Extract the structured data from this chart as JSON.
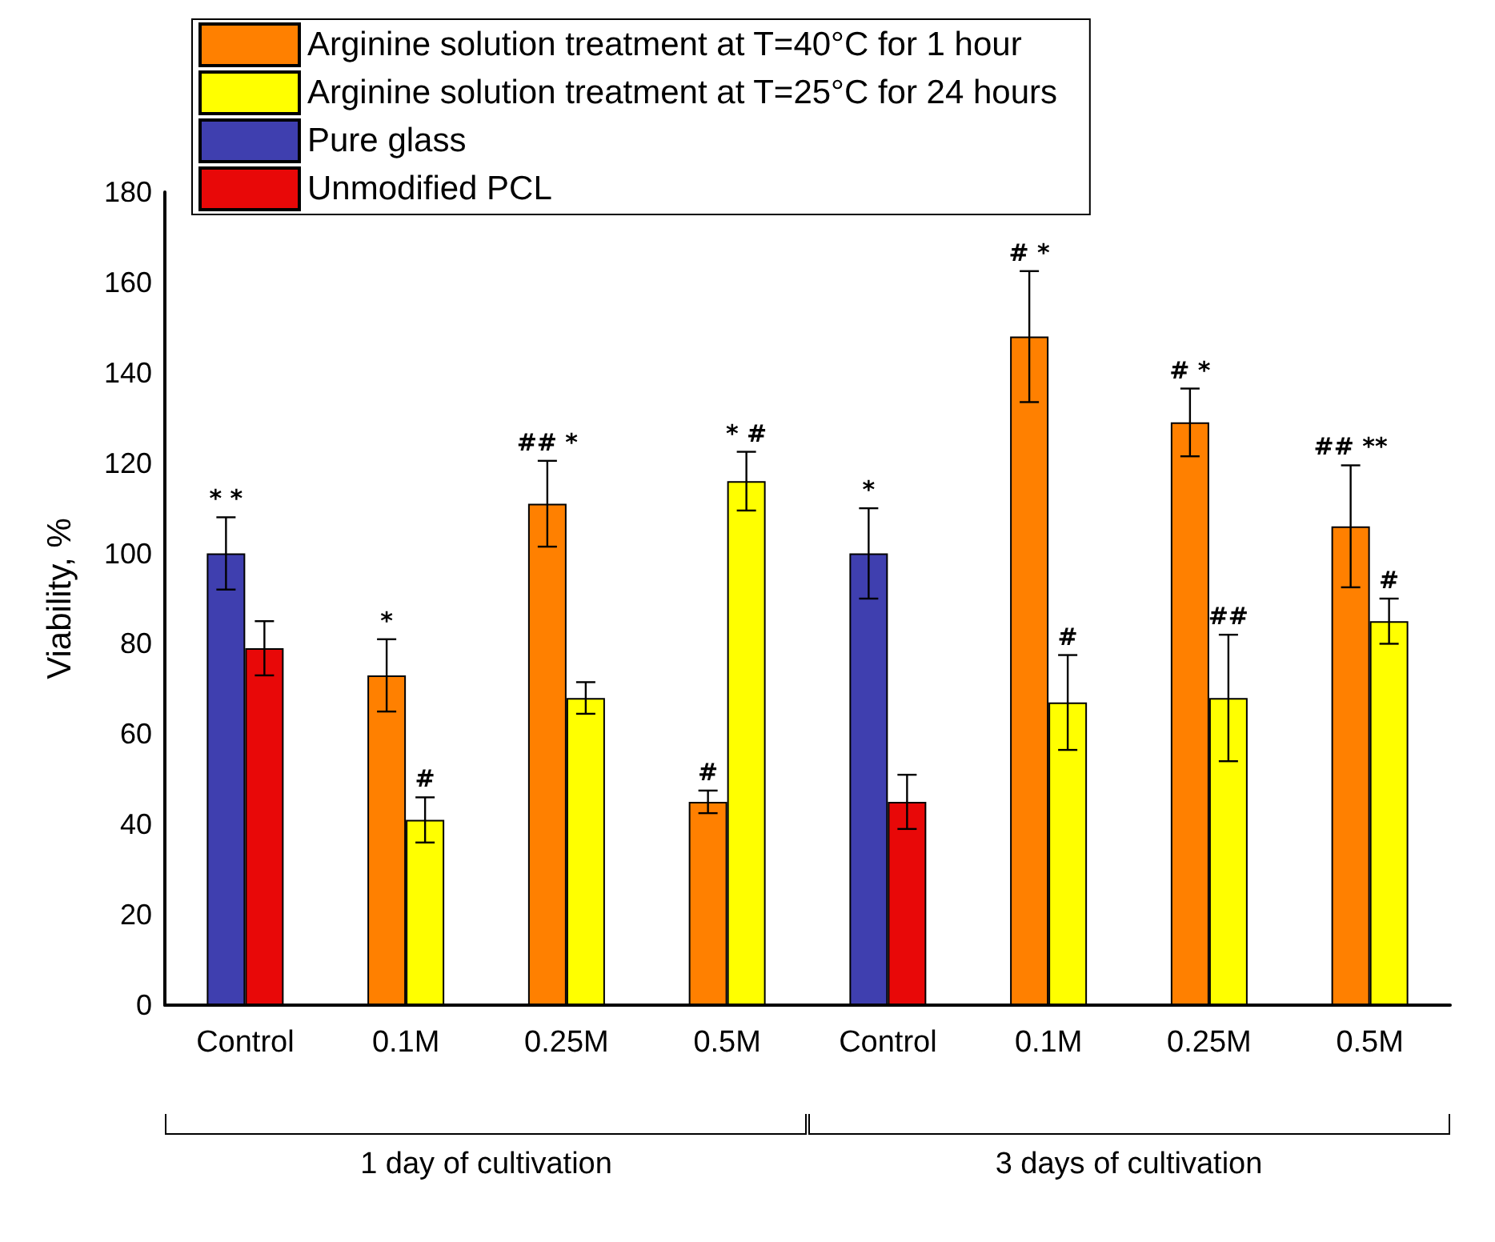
{
  "chart_data": {
    "type": "bar",
    "ylabel": "Viability, %",
    "categories": [
      "Control",
      "0.1M",
      "0.25M",
      "0.5M",
      "Control",
      "0.1M",
      "0.25M",
      "0.5M"
    ],
    "series": [
      {
        "name": "Arginine solution treatment at T=40°C for 1 hour",
        "color": "#ff8000",
        "values": [
          null,
          73,
          111,
          45,
          null,
          148,
          129,
          106
        ],
        "errors": [
          null,
          8,
          9.5,
          2.5,
          null,
          14.5,
          7.5,
          13.5
        ],
        "value_labels": [
          null,
          "*",
          "## *",
          "#",
          null,
          "# *",
          "# *",
          "## **"
        ]
      },
      {
        "name": "Arginine solution treatment at T=25°C for 24 hours",
        "color": "#ffff00",
        "values": [
          null,
          41,
          68,
          116,
          null,
          67,
          68,
          85
        ],
        "errors": [
          null,
          5,
          3.5,
          6.5,
          null,
          10.5,
          14,
          5
        ],
        "value_labels": [
          null,
          "#",
          null,
          "* #",
          null,
          "#",
          "##",
          "#"
        ]
      },
      {
        "name": "Pure glass",
        "color": "#3f3faf",
        "values": [
          100,
          null,
          null,
          null,
          100,
          null,
          null,
          null
        ],
        "errors": [
          8,
          null,
          null,
          null,
          10,
          null,
          null,
          null
        ],
        "value_labels": [
          "* *",
          null,
          null,
          null,
          "*",
          null,
          null,
          null
        ]
      },
      {
        "name": "Unmodified PCL",
        "color": "#e80808",
        "values": [
          79,
          null,
          null,
          null,
          45,
          null,
          null,
          null
        ],
        "errors": [
          6,
          null,
          null,
          null,
          6,
          null,
          null,
          null
        ]
      }
    ],
    "ylim": [
      0,
      180
    ],
    "yticks": [
      0,
      20,
      40,
      60,
      80,
      100,
      120,
      140,
      160,
      180
    ],
    "grid": false,
    "legend": "top left",
    "annotations": [
      "1 day of cultivation",
      "3 days of cultivation"
    ]
  }
}
